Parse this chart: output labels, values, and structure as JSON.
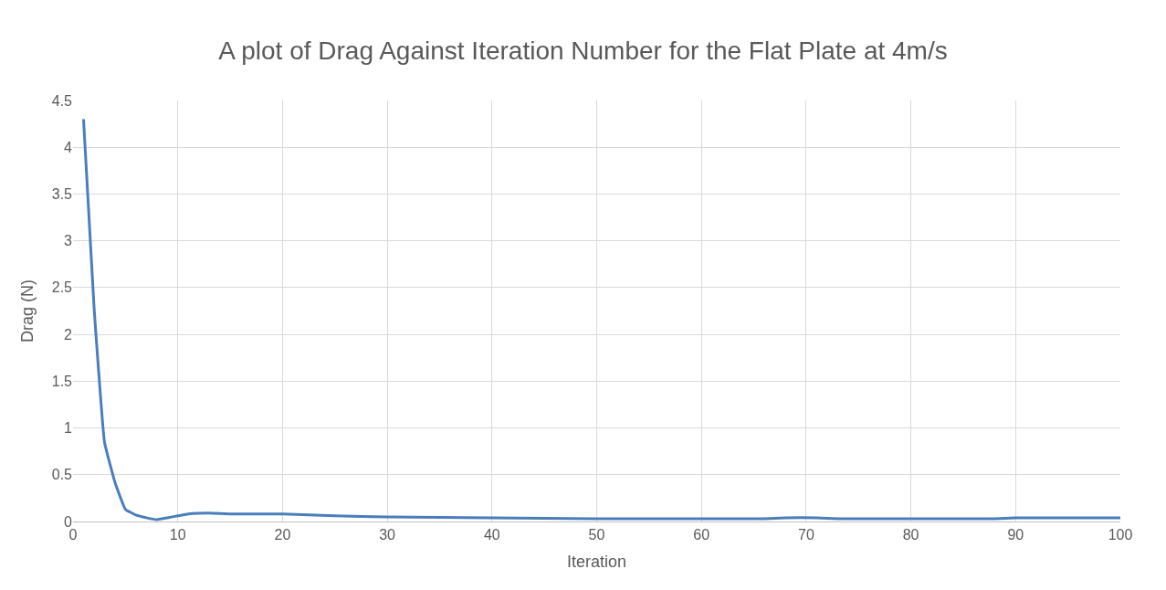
{
  "chart_data": {
    "type": "line",
    "title": "A plot of Drag Against Iteration Number for the Flat Plate at 4m/s",
    "xlabel": "Iteration",
    "ylabel": "Drag (N)",
    "x": [
      1,
      2,
      3,
      4,
      5,
      6,
      7,
      8,
      9,
      10,
      11,
      13,
      15,
      20,
      25,
      30,
      40,
      50,
      60,
      66,
      68,
      71,
      73,
      88,
      90,
      100
    ],
    "series": [
      {
        "color": "#4a7ebb",
        "values": [
          4.3,
          2.3,
          0.85,
          0.42,
          0.13,
          0.07,
          0.04,
          0.02,
          0.04,
          0.06,
          0.08,
          0.09,
          0.08,
          0.08,
          0.06,
          0.05,
          0.04,
          0.03,
          0.03,
          0.03,
          0.04,
          0.04,
          0.03,
          0.03,
          0.04,
          0.04
        ]
      }
    ],
    "xlim": [
      0,
      100
    ],
    "xticks": [
      0,
      10,
      20,
      30,
      40,
      50,
      60,
      70,
      80,
      90,
      100
    ],
    "ylim": [
      0,
      4.5
    ],
    "yticks": [
      0,
      0.5,
      1,
      1.5,
      2,
      2.5,
      3,
      3.5,
      4,
      4.5
    ],
    "grid": true,
    "marker": "none",
    "line_style": "solid"
  }
}
